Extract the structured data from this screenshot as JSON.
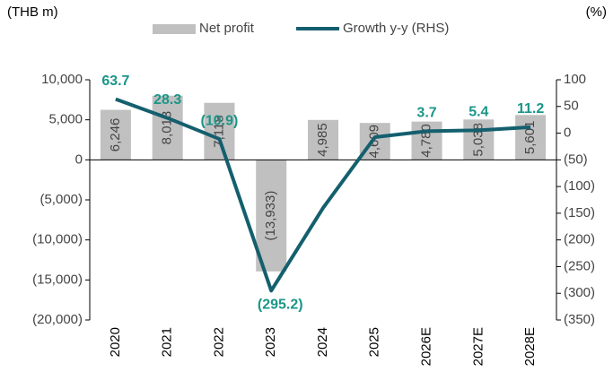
{
  "chart_data": {
    "type": "bar_line",
    "y_label": "(THB m)",
    "y2_label": "(%)",
    "categories": [
      "2020",
      "2021",
      "2022",
      "2023",
      "2024",
      "2025",
      "2026E",
      "2027E",
      "2028E"
    ],
    "series": [
      {
        "name": "Net profit",
        "type": "bar",
        "color": "#c0c0c0",
        "values": [
          6246,
          8013,
          7118,
          -13933,
          4985,
          4609,
          4780,
          5038,
          5601
        ],
        "value_labels": [
          "6,246",
          "8,013",
          "7,118",
          "(13,933)",
          "4,985",
          "4,609",
          "4,780",
          "5,038",
          "5,601"
        ]
      },
      {
        "name": "Growth y-y (RHS)",
        "type": "line",
        "axis": "y2",
        "color": "#145f6e",
        "label_color": "#1a9688",
        "values": [
          63.7,
          28.3,
          -10.9,
          -295.2,
          -140,
          -7.5,
          3.7,
          5.4,
          11.2
        ],
        "value_labels": [
          "63.7",
          "28.3",
          "(10.9)",
          "(295.2)",
          null,
          null,
          "3.7",
          "5.4",
          "11.2"
        ]
      }
    ],
    "ylim": [
      -20000,
      10000
    ],
    "yticks": [
      {
        "value": -20000,
        "label": "(20,000)"
      },
      {
        "value": -15000,
        "label": "(15,000)"
      },
      {
        "value": -10000,
        "label": "(10,000)"
      },
      {
        "value": -5000,
        "label": "(5,000)"
      },
      0,
      {
        "value": 5000,
        "label": "5,000"
      },
      {
        "value": 10000,
        "label": "10,000"
      }
    ],
    "y2lim": [
      -350,
      100
    ],
    "y2ticks": [
      {
        "value": -350,
        "label": "(350)"
      },
      {
        "value": -300,
        "label": "(300)"
      },
      {
        "value": -250,
        "label": "(250)"
      },
      {
        "value": -200,
        "label": "(200)"
      },
      {
        "value": -150,
        "label": "(150)"
      },
      {
        "value": -100,
        "label": "(100)"
      },
      {
        "value": -50,
        "label": "(50)"
      },
      0,
      50,
      100
    ]
  }
}
